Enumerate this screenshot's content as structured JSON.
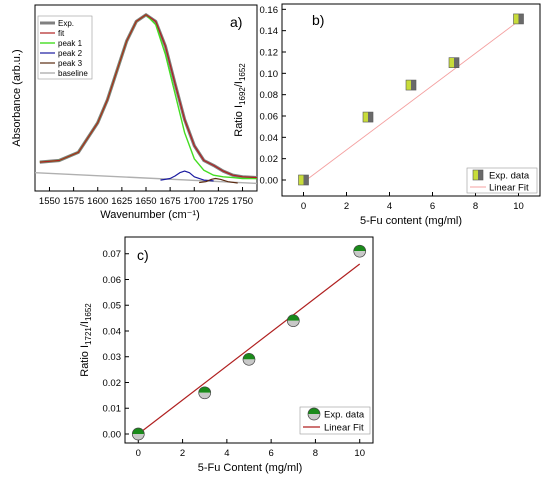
{
  "chart_data": [
    {
      "panel_label": "a)",
      "type": "line",
      "xlabel": "Wavenumber (cm⁻¹)",
      "ylabel": "Absorbance (arb.u.)",
      "x_ticks": [
        1550,
        1575,
        1600,
        1625,
        1650,
        1675,
        1700,
        1725,
        1750
      ],
      "xlim": [
        1535,
        1765
      ],
      "ylim": [
        0,
        1.1
      ],
      "y_tick_labels_shown": false,
      "legend": {
        "placement": "top-left",
        "entries": [
          "Exp.",
          "fit",
          "peak 1",
          "peak 2",
          "peak 3",
          "baseline"
        ]
      },
      "series": [
        {
          "name": "Exp.",
          "color": "#808080",
          "x": [
            1540,
            1560,
            1580,
            1600,
            1610,
            1620,
            1630,
            1640,
            1650,
            1660,
            1670,
            1680,
            1690,
            1700,
            1710,
            1720,
            1730,
            1740,
            1750,
            1765
          ],
          "y": [
            0.14,
            0.15,
            0.2,
            0.38,
            0.52,
            0.7,
            0.88,
            1.0,
            1.04,
            1.0,
            0.85,
            0.62,
            0.4,
            0.24,
            0.15,
            0.12,
            0.085,
            0.06,
            0.05,
            0.045
          ]
        },
        {
          "name": "fit",
          "color": "#b02020",
          "x": [
            1540,
            1560,
            1580,
            1600,
            1610,
            1620,
            1630,
            1640,
            1650,
            1660,
            1670,
            1680,
            1690,
            1700,
            1710,
            1720,
            1730,
            1740,
            1750,
            1765
          ],
          "y": [
            0.14,
            0.15,
            0.2,
            0.38,
            0.52,
            0.7,
            0.88,
            1.0,
            1.04,
            1.0,
            0.85,
            0.62,
            0.4,
            0.24,
            0.15,
            0.12,
            0.085,
            0.06,
            0.05,
            0.045
          ]
        },
        {
          "name": "peak 1",
          "color": "#44dd22",
          "x": [
            1540,
            1560,
            1580,
            1600,
            1610,
            1620,
            1630,
            1640,
            1650,
            1660,
            1670,
            1680,
            1690,
            1700,
            1710,
            1720,
            1730,
            1740,
            1750,
            1765
          ],
          "y": [
            0.14,
            0.15,
            0.2,
            0.38,
            0.52,
            0.7,
            0.88,
            1.0,
            1.04,
            0.98,
            0.8,
            0.56,
            0.32,
            0.16,
            0.09,
            0.06,
            0.05,
            0.045,
            0.04,
            0.04
          ]
        },
        {
          "name": "peak 2",
          "color": "#1a1aa0",
          "x": [
            1665,
            1675,
            1680,
            1685,
            1690,
            1695,
            1700,
            1710,
            1720
          ],
          "y": [
            0.03,
            0.04,
            0.055,
            0.075,
            0.085,
            0.075,
            0.05,
            0.03,
            0.025
          ]
        },
        {
          "name": "peak 3",
          "color": "#5a2a10",
          "x": [
            1705,
            1712,
            1718,
            1722,
            1727,
            1735,
            1745
          ],
          "y": [
            0.015,
            0.02,
            0.035,
            0.04,
            0.035,
            0.02,
            0.012
          ]
        },
        {
          "name": "baseline",
          "color": "#b0b0b0",
          "x": [
            1535,
            1765
          ],
          "y": [
            0.075,
            0.01
          ]
        }
      ]
    },
    {
      "panel_label": "b)",
      "type": "scatter",
      "xlabel": "5-Fu content (mg/ml)",
      "ylabel_prefix": "Ratio I",
      "ylabel_sub1": "1692",
      "ylabel_mid": "/I",
      "ylabel_sub2": "1652",
      "xlim": [
        -1,
        11
      ],
      "ylim": [
        -0.015,
        0.165
      ],
      "x_ticks": [
        0,
        2,
        4,
        6,
        8,
        10
      ],
      "y_ticks": [
        0.0,
        0.02,
        0.04,
        0.06,
        0.08,
        0.1,
        0.12,
        0.14,
        0.16
      ],
      "y_tick_labels": [
        "0.00",
        "0.02",
        "0.04",
        "0.06",
        "0.08",
        "0.10",
        "0.12",
        "0.14",
        "0.16"
      ],
      "legend": {
        "placement": "bottom-right",
        "entries": [
          "Exp. data",
          "Linear Fit"
        ]
      },
      "series": [
        {
          "name": "Exp. data",
          "x": [
            0,
            3,
            5,
            7,
            10
          ],
          "y": [
            0.0,
            0.059,
            0.089,
            0.11,
            0.151
          ],
          "colors": [
            "#c8dc3a",
            "#6a6a6a"
          ]
        },
        {
          "name": "Linear Fit",
          "x": [
            0,
            10
          ],
          "y": [
            -0.002,
            0.149
          ],
          "color": "#f4a0a0"
        }
      ]
    },
    {
      "panel_label": "c)",
      "type": "scatter",
      "xlabel": "5-Fu Content (mg/ml)",
      "ylabel_prefix": "Ratio I",
      "ylabel_sub1": "1721",
      "ylabel_mid": "/I",
      "ylabel_sub2": "1652",
      "xlim": [
        -0.6,
        10.6
      ],
      "ylim": [
        -0.0035,
        0.0765
      ],
      "x_ticks": [
        0,
        2,
        4,
        6,
        8,
        10
      ],
      "y_ticks": [
        0.0,
        0.01,
        0.02,
        0.03,
        0.04,
        0.05,
        0.06,
        0.07
      ],
      "y_tick_labels": [
        "0.00",
        "0.01",
        "0.02",
        "0.03",
        "0.04",
        "0.05",
        "0.06",
        "0.07"
      ],
      "legend": {
        "placement": "bottom-right",
        "entries": [
          "Exp. data",
          "Linear Fit"
        ]
      },
      "series": [
        {
          "name": "Exp. data",
          "x": [
            0,
            3,
            5,
            7,
            10
          ],
          "y": [
            0.0,
            0.016,
            0.029,
            0.044,
            0.071
          ],
          "colors": [
            "#1a8a1a",
            "#c8c8c8"
          ]
        },
        {
          "name": "Linear Fit",
          "x": [
            0,
            10
          ],
          "y": [
            0.0,
            0.066
          ],
          "color": "#b02020"
        }
      ]
    }
  ]
}
